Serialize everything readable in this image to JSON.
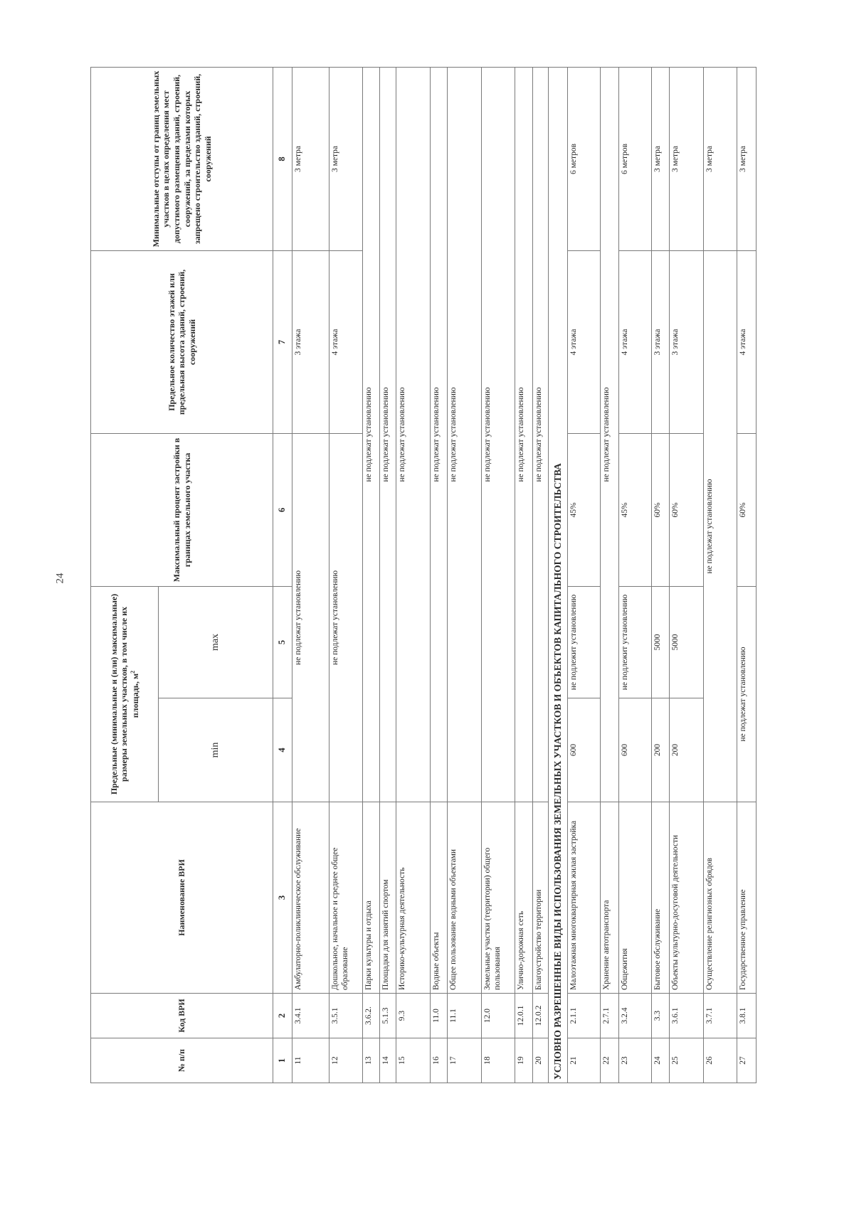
{
  "page_number": "24",
  "header": {
    "col1": "№ п/п",
    "col2": "Код ВРИ",
    "col3": "Наименование ВРИ",
    "col45_group": "Предельные (минимальные и (или) максимальные) размеры земельных участков, в том числе их площадь, м",
    "col45_group_sup": "2",
    "col4": "min",
    "col5": "max",
    "col6": "Максимальный процент застройки в границах земельного участка",
    "col7": "Предельное количество этажей или предельная высота зданий, строений, сооружений",
    "col8": "Минимальные отступы от границ земельных участков в целях определения мест допустимого размещения зданий, строений, сооружений, за пределами которых запрещено строительство зданий, строений, сооружений"
  },
  "column_numbers": [
    "1",
    "2",
    "3",
    "4",
    "5",
    "6",
    "7",
    "8"
  ],
  "rows": [
    {
      "n": "11",
      "code": "3.4.1",
      "name": "Амбулаторно-поликлиническое обслуживание",
      "cells": [
        {
          "text": "не подлежат установлению",
          "span": 3
        },
        {
          "text": "3 этажа",
          "span": 1
        },
        {
          "text": "3 метра",
          "span": 1
        }
      ]
    },
    {
      "n": "12",
      "code": "3.5.1",
      "name": "Дошкольное, начальное и среднее общее образование",
      "cells": [
        {
          "text": "не подлежат установлению",
          "span": 3
        },
        {
          "text": "4 этажа",
          "span": 1
        },
        {
          "text": "3 метра",
          "span": 1
        }
      ]
    },
    {
      "n": "13",
      "code": "3.6.2.",
      "name": "Парки культуры и отдыха",
      "cells": [
        {
          "text": "не подлежат установлению",
          "span": 5
        }
      ]
    },
    {
      "n": "14",
      "code": "5.1.3",
      "name": "Площадки для занятий спортом",
      "cells": [
        {
          "text": "не подлежат установлению",
          "span": 5
        }
      ]
    },
    {
      "n": "15",
      "code": "9.3",
      "name": "Историко-культурная деятельность",
      "cells": [
        {
          "text": "не подлежат установлению",
          "span": 5
        }
      ]
    },
    {
      "n": "16",
      "code": "11.0",
      "name": "Водные объекты",
      "cells": [
        {
          "text": "не подлежат установлению",
          "span": 5
        }
      ]
    },
    {
      "n": "17",
      "code": "11.1",
      "name": "Общее пользование водными объектами",
      "cells": [
        {
          "text": "не подлежат установлению",
          "span": 5
        }
      ]
    },
    {
      "n": "18",
      "code": "12.0",
      "name": "Земельные участки (территории) общего пользования",
      "cells": [
        {
          "text": "не подлежат установлению",
          "span": 5
        }
      ]
    },
    {
      "n": "19",
      "code": "12.0.1",
      "name": "Улично-дорожная сеть",
      "cells": [
        {
          "text": "не подлежат установлению",
          "span": 5
        }
      ]
    },
    {
      "n": "20",
      "code": "12.0.2",
      "name": "Благоустройство территории",
      "cells": [
        {
          "text": "не подлежат установлению",
          "span": 5
        }
      ]
    },
    {
      "section": "УСЛОВНО РАЗРЕШЕННЫЕ ВИДЫ ИСПОЛЬЗОВАНИЯ ЗЕМЕЛЬНЫХ УЧАСТКОВ И ОБЪЕКТОВ КАПИТАЛЬНОГО СТРОИТЕЛЬСТВА"
    },
    {
      "n": "21",
      "code": "2.1.1",
      "name": "Малоэтажная многоквартирная жилая застройка",
      "cells": [
        {
          "text": "600",
          "span": 1
        },
        {
          "text": "не подлежит установлению",
          "span": 1
        },
        {
          "text": "45%",
          "span": 1
        },
        {
          "text": "4 этажа",
          "span": 1
        },
        {
          "text": "6 метров",
          "span": 1
        }
      ]
    },
    {
      "n": "22",
      "code": "2.7.1",
      "name": "Хранение автотранспорта",
      "cells": [
        {
          "text": "не подлежат установлению",
          "span": 5
        }
      ]
    },
    {
      "n": "23",
      "code": "3.2.4",
      "name": "Общежития",
      "cells": [
        {
          "text": "600",
          "span": 1
        },
        {
          "text": "не подлежит установлению",
          "span": 1
        },
        {
          "text": "45%",
          "span": 1
        },
        {
          "text": "4 этажа",
          "span": 1
        },
        {
          "text": "6 метров",
          "span": 1
        }
      ]
    },
    {
      "n": "24",
      "code": "3.3",
      "name": "Бытовое обслуживание",
      "cells": [
        {
          "text": "200",
          "span": 1
        },
        {
          "text": "5000",
          "span": 1
        },
        {
          "text": "60%",
          "span": 1
        },
        {
          "text": "3 этажа",
          "span": 1
        },
        {
          "text": "3 метра",
          "span": 1
        }
      ]
    },
    {
      "n": "25",
      "code": "3.6.1",
      "name": "Объекты культурно-досуговой деятельности",
      "cells": [
        {
          "text": "200",
          "span": 1
        },
        {
          "text": "5000",
          "span": 1
        },
        {
          "text": "60%",
          "span": 1
        },
        {
          "text": "3 этажа",
          "span": 1
        },
        {
          "text": "3 метра",
          "span": 1
        }
      ]
    },
    {
      "n": "26",
      "code": "3.7.1",
      "name": "Осуществление религиозных обрядов",
      "cells": [
        {
          "text": "не подлежат установлению",
          "span": 4
        },
        {
          "text": "3 метра",
          "span": 1
        }
      ]
    },
    {
      "n": "27",
      "code": "3.8.1",
      "name": "Государственное управление",
      "cells": [
        {
          "text": "не подлежат установлению",
          "span": 2
        },
        {
          "text": "60%",
          "span": 1
        },
        {
          "text": "4 этажа",
          "span": 1
        },
        {
          "text": "3 метра",
          "span": 1
        }
      ]
    }
  ]
}
